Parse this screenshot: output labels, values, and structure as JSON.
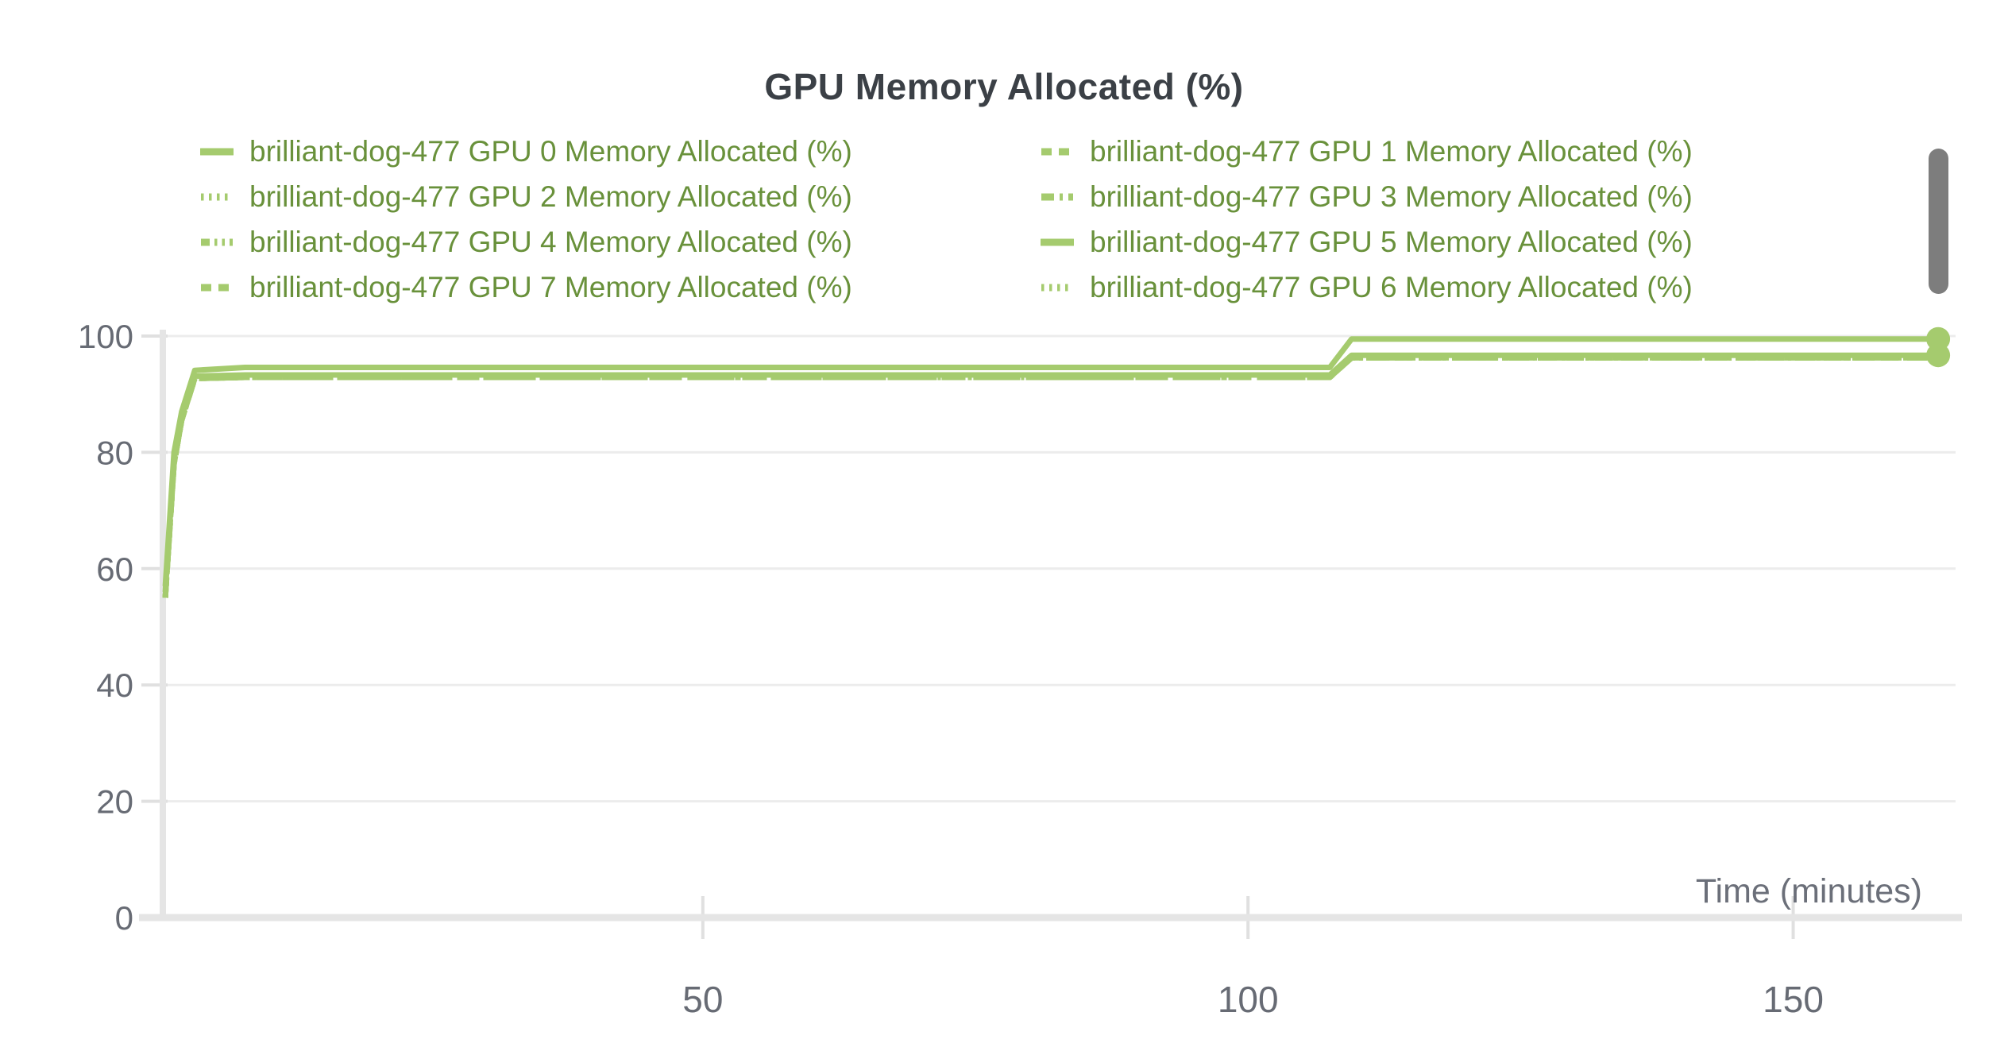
{
  "panel": {
    "title": "GPU Memory Allocated (%)"
  },
  "colors": {
    "line_green": "#a5cb6e",
    "legend_text_green": "#69913b",
    "title_gray": "#3b4046",
    "tick_label_gray": "#676b74",
    "axis_label_gray": "#6b6f79",
    "gridline": "#ececec",
    "axis_line": "#e5e5e5",
    "tick_mark": "#e0e0e0",
    "scrollbar": "#7d7d7d"
  },
  "legend": {
    "items": [
      {
        "label": "brilliant-dog-477 GPU 0 Memory Allocated (%)",
        "dash": "solid",
        "series": "GPU 0"
      },
      {
        "label": "brilliant-dog-477 GPU 1 Memory Allocated (%)",
        "dash": "dashed",
        "series": "GPU 1"
      },
      {
        "label": "brilliant-dog-477 GPU 2 Memory Allocated (%)",
        "dash": "dotted",
        "series": "GPU 2"
      },
      {
        "label": "brilliant-dog-477 GPU 3 Memory Allocated (%)",
        "dash": "dashdot",
        "series": "GPU 3"
      },
      {
        "label": "brilliant-dog-477 GPU 4 Memory Allocated (%)",
        "dash": "dashdotdot",
        "series": "GPU 4"
      },
      {
        "label": "brilliant-dog-477 GPU 5 Memory Allocated (%)",
        "dash": "solid",
        "series": "GPU 5"
      },
      {
        "label": "brilliant-dog-477 GPU 7 Memory Allocated (%)",
        "dash": "dashed",
        "series": "GPU 7"
      },
      {
        "label": "brilliant-dog-477 GPU 6 Memory Allocated (%)",
        "dash": "dotted",
        "series": "GPU 6"
      }
    ]
  },
  "chart_data": {
    "type": "line",
    "title": "GPU Memory Allocated (%)",
    "xlabel": "Time (minutes)",
    "ylabel": "",
    "xlim": [
      0,
      165
    ],
    "ylim": [
      0,
      100
    ],
    "x_ticks": [
      50,
      100,
      150
    ],
    "y_ticks": [
      0,
      20,
      40,
      60,
      80,
      100
    ],
    "grid": "horizontal",
    "legend_position": "top",
    "line_color": "#a5cb6e",
    "run_name": "brilliant-dog-477",
    "series": [
      {
        "name": "brilliant-dog-477 GPU 2 Memory Allocated (%)",
        "gpu": "GPU 2",
        "dash": "dotted",
        "points": [
          [
            0.7,
            55
          ],
          [
            1.5,
            78
          ],
          [
            2.2,
            85.5
          ],
          [
            3.4,
            92.7
          ],
          [
            8,
            92.9
          ],
          [
            107.5,
            92.9
          ],
          [
            109.5,
            96.25
          ],
          [
            163.3,
            96.25
          ]
        ],
        "end_marker": false
      },
      {
        "name": "brilliant-dog-477 GPU 6 Memory Allocated (%)",
        "gpu": "GPU 6",
        "dash": "dotted",
        "points": [
          [
            0.7,
            55
          ],
          [
            1.5,
            78
          ],
          [
            2.2,
            85.5
          ],
          [
            3.4,
            92.7
          ],
          [
            8,
            92.9
          ],
          [
            107.5,
            92.9
          ],
          [
            109.5,
            96.25
          ],
          [
            163.3,
            96.25
          ]
        ],
        "end_marker": false
      },
      {
        "name": "brilliant-dog-477 GPU 3 Memory Allocated (%)",
        "gpu": "GPU 3",
        "dash": "dashdot",
        "points": [
          [
            0.7,
            55
          ],
          [
            1.5,
            78
          ],
          [
            2.2,
            85.5
          ],
          [
            3.4,
            92.7
          ],
          [
            8,
            92.9
          ],
          [
            107.5,
            92.9
          ],
          [
            109.5,
            96.25
          ],
          [
            163.3,
            96.25
          ]
        ],
        "end_marker": false
      },
      {
        "name": "brilliant-dog-477 GPU 4 Memory Allocated (%)",
        "gpu": "GPU 4",
        "dash": "dashdotdot",
        "points": [
          [
            0.7,
            55
          ],
          [
            1.5,
            78
          ],
          [
            2.2,
            85.5
          ],
          [
            3.4,
            92.7
          ],
          [
            8,
            92.9
          ],
          [
            107.5,
            92.9
          ],
          [
            109.5,
            96.25
          ],
          [
            163.3,
            96.25
          ]
        ],
        "end_marker": false
      },
      {
        "name": "brilliant-dog-477 GPU 1 Memory Allocated (%)",
        "gpu": "GPU 1",
        "dash": "dashed",
        "points": [
          [
            0.7,
            55
          ],
          [
            1.5,
            78
          ],
          [
            2.2,
            85.5
          ],
          [
            3.4,
            92.7
          ],
          [
            8,
            92.9
          ],
          [
            107.5,
            92.9
          ],
          [
            109.5,
            96.25
          ],
          [
            163.3,
            96.25
          ]
        ],
        "end_marker": false
      },
      {
        "name": "brilliant-dog-477 GPU 7 Memory Allocated (%)",
        "gpu": "GPU 7",
        "dash": "dashed",
        "points": [
          [
            0.7,
            55
          ],
          [
            1.5,
            78
          ],
          [
            2.2,
            85.5
          ],
          [
            3.4,
            92.7
          ],
          [
            8,
            92.9
          ],
          [
            107.5,
            92.9
          ],
          [
            109.5,
            96.25
          ],
          [
            163.3,
            96.25
          ]
        ],
        "end_marker": false
      },
      {
        "name": "brilliant-dog-477 GPU 5 Memory Allocated (%)",
        "gpu": "GPU 5",
        "dash": "solid",
        "points": [
          [
            0.7,
            56
          ],
          [
            1.5,
            79
          ],
          [
            2.2,
            86
          ],
          [
            3.4,
            93.1
          ],
          [
            8,
            93.3
          ],
          [
            107.5,
            93.3
          ],
          [
            109.5,
            96.7
          ],
          [
            163.3,
            96.7
          ]
        ],
        "end_marker": true
      },
      {
        "name": "brilliant-dog-477 GPU 0 Memory Allocated (%)",
        "gpu": "GPU 0",
        "dash": "solid",
        "points": [
          [
            0.7,
            57
          ],
          [
            1.5,
            80
          ],
          [
            2.2,
            87
          ],
          [
            3.4,
            94.1
          ],
          [
            8,
            94.6
          ],
          [
            107.5,
            94.6
          ],
          [
            109.5,
            99.5
          ],
          [
            163.3,
            99.5
          ]
        ],
        "end_marker": true
      }
    ]
  }
}
